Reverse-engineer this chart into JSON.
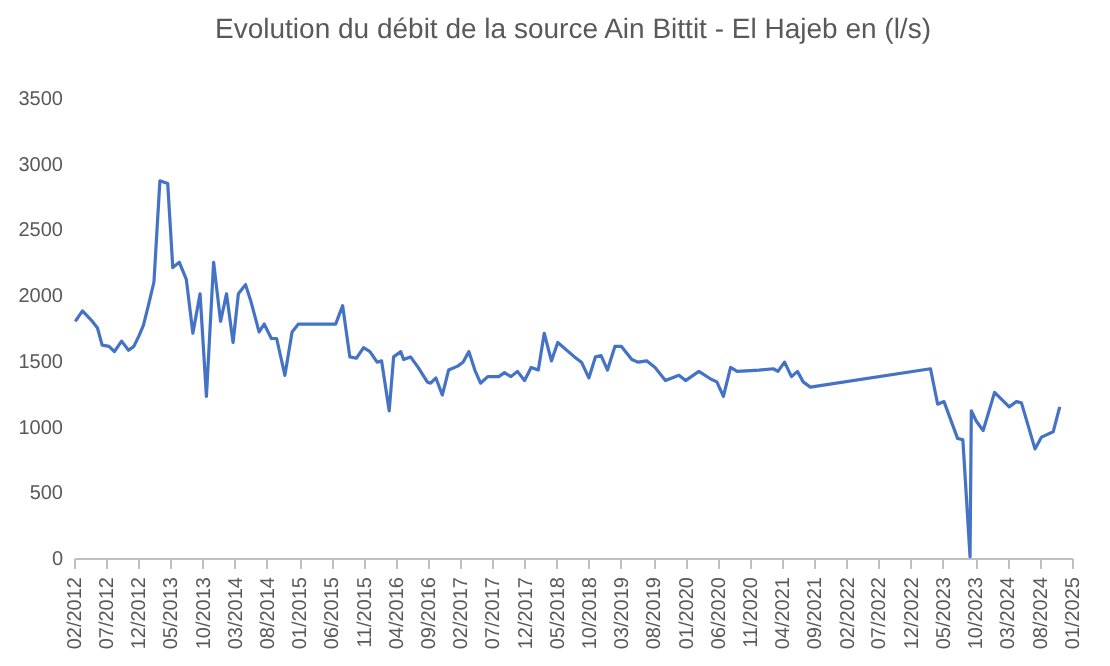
{
  "chart_data": {
    "type": "line",
    "title": "Evolution du débit de la source Ain Bittit - El Hajeb en (l/s)",
    "x": [
      "2012-02-07",
      "2012-03-12",
      "2012-04-28",
      "2012-05-22",
      "2012-06-13",
      "2012-07-16",
      "2012-08-10",
      "2012-09-13",
      "2012-10-16",
      "2012-11-10",
      "2012-12-04",
      "2012-12-25",
      "2013-01-16",
      "2013-02-13",
      "2013-03-13",
      "2013-04-19",
      "2013-05-13",
      "2013-06-13",
      "2013-07-16",
      "2013-08-16",
      "2013-09-19",
      "2013-10-19",
      "2013-11-22",
      "2013-12-25",
      "2014-01-22",
      "2014-02-22",
      "2014-03-19",
      "2014-04-22",
      "2014-05-16",
      "2014-06-25",
      "2014-07-19",
      "2014-08-22",
      "2014-09-16",
      "2014-10-25",
      "2014-11-28",
      "2014-12-28",
      "2015-06-22",
      "2015-07-25",
      "2015-08-28",
      "2015-09-28",
      "2015-11-01",
      "2015-12-01",
      "2016-01-04",
      "2016-01-25",
      "2016-03-01",
      "2016-03-22",
      "2016-04-25",
      "2016-05-08",
      "2016-06-10",
      "2016-07-16",
      "2016-08-28",
      "2016-09-13",
      "2016-10-08",
      "2016-11-07",
      "2016-12-07",
      "2017-01-19",
      "2017-02-13",
      "2017-03-13",
      "2017-04-10",
      "2017-05-07",
      "2017-06-10",
      "2017-08-01",
      "2017-08-28",
      "2017-09-28",
      "2017-10-28",
      "2017-12-01",
      "2018-01-01",
      "2018-02-04",
      "2018-03-04",
      "2018-04-07",
      "2018-05-07",
      "2018-07-25",
      "2018-08-27",
      "2018-10-01",
      "2018-11-01",
      "2018-11-28",
      "2018-12-28",
      "2019-02-01",
      "2019-03-04",
      "2019-04-22",
      "2019-05-22",
      "2019-07-01",
      "2019-08-10",
      "2019-09-28",
      "2019-12-01",
      "2020-01-01",
      "2020-03-04",
      "2020-05-01",
      "2020-05-28",
      "2020-06-28",
      "2020-08-01",
      "2020-09-01",
      "2020-12-13",
      "2021-02-19",
      "2021-03-13",
      "2021-04-13",
      "2021-05-16",
      "2021-06-13",
      "2021-07-10",
      "2021-08-13",
      "2023-03-04",
      "2023-04-07",
      "2023-05-07",
      "2023-07-10",
      "2023-08-04",
      "2023-09-07",
      "2023-09-13",
      "2023-10-07",
      "2023-11-08",
      "2024-01-01",
      "2024-03-10",
      "2024-04-13",
      "2024-05-07",
      "2024-07-10",
      "2024-08-10",
      "2024-10-04",
      "2024-11-04"
    ],
    "series": [
      {
        "color": "#4472c4",
        "values": [
          1800,
          1880,
          1800,
          1750,
          1620,
          1610,
          1570,
          1650,
          1580,
          1610,
          1690,
          1770,
          1910,
          2100,
          2870,
          2850,
          2210,
          2250,
          2120,
          1710,
          2010,
          1230,
          2250,
          1800,
          2010,
          1640,
          2010,
          2080,
          1960,
          1720,
          1780,
          1670,
          1670,
          1390,
          1720,
          1780,
          1780,
          1920,
          1530,
          1520,
          1600,
          1570,
          1490,
          1500,
          1120,
          1530,
          1570,
          1510,
          1530,
          1450,
          1340,
          1330,
          1370,
          1240,
          1430,
          1460,
          1490,
          1570,
          1430,
          1330,
          1380,
          1380,
          1410,
          1380,
          1420,
          1350,
          1450,
          1430,
          1710,
          1500,
          1640,
          1530,
          1490,
          1370,
          1530,
          1540,
          1430,
          1610,
          1610,
          1510,
          1490,
          1500,
          1450,
          1350,
          1390,
          1350,
          1420,
          1360,
          1340,
          1230,
          1450,
          1420,
          1430,
          1440,
          1420,
          1490,
          1380,
          1420,
          1340,
          1300,
          1440,
          1170,
          1190,
          910,
          900,
          10,
          1120,
          1040,
          970,
          1260,
          1150,
          1190,
          1180,
          830,
          920,
          960,
          1150
        ]
      }
    ],
    "xlim": [
      "2012-02",
      "2025-01"
    ],
    "xticks": [
      {
        "value": "2012-02",
        "label": "02/2012"
      },
      {
        "value": "2012-07",
        "label": "07/2012"
      },
      {
        "value": "2012-12",
        "label": "12/2012"
      },
      {
        "value": "2013-05",
        "label": "05/2013"
      },
      {
        "value": "2013-10",
        "label": "10/2013"
      },
      {
        "value": "2014-03",
        "label": "03/2014"
      },
      {
        "value": "2014-08",
        "label": "08/2014"
      },
      {
        "value": "2015-01",
        "label": "01/2015"
      },
      {
        "value": "2015-06",
        "label": "06/2015"
      },
      {
        "value": "2015-11",
        "label": "11/2015"
      },
      {
        "value": "2016-04",
        "label": "04/2016"
      },
      {
        "value": "2016-09",
        "label": "09/2016"
      },
      {
        "value": "2017-02",
        "label": "02/2017"
      },
      {
        "value": "2017-07",
        "label": "07/2017"
      },
      {
        "value": "2017-12",
        "label": "12/2017"
      },
      {
        "value": "2018-05",
        "label": "05/2018"
      },
      {
        "value": "2018-10",
        "label": "10/2018"
      },
      {
        "value": "2019-03",
        "label": "03/2019"
      },
      {
        "value": "2019-08",
        "label": "08/2019"
      },
      {
        "value": "2020-01",
        "label": "01/2020"
      },
      {
        "value": "2020-06",
        "label": "06/2020"
      },
      {
        "value": "2020-11",
        "label": "11/2020"
      },
      {
        "value": "2021-04",
        "label": "04/2021"
      },
      {
        "value": "2021-09",
        "label": "09/2021"
      },
      {
        "value": "2022-02",
        "label": "02/2022"
      },
      {
        "value": "2022-07",
        "label": "07/2022"
      },
      {
        "value": "2022-12",
        "label": "12/2022"
      },
      {
        "value": "2023-05",
        "label": "05/2023"
      },
      {
        "value": "2023-10",
        "label": "10/2023"
      },
      {
        "value": "2024-03",
        "label": "03/2024"
      },
      {
        "value": "2024-08",
        "label": "08/2024"
      },
      {
        "value": "2025-01",
        "label": "01/2025"
      }
    ],
    "ylim": [
      0,
      3500
    ],
    "yticks": [
      0,
      500,
      1000,
      1500,
      2000,
      2500,
      3000,
      3500
    ],
    "grid": false,
    "legend": false
  }
}
